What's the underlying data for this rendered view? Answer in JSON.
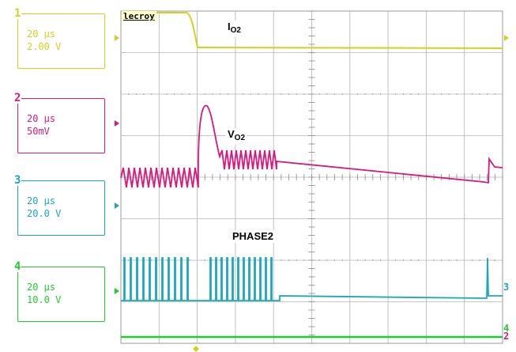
{
  "brand": "lecroy",
  "channels": [
    {
      "number": "1",
      "time_div": "20 µs",
      "volt_div": "2.00 V",
      "color": "#d2d21e"
    },
    {
      "number": "2",
      "time_div": "20 µs",
      "volt_div": "50mV",
      "color": "#d6197c"
    },
    {
      "number": "3",
      "time_div": "20 µs",
      "volt_div": "20.0 V",
      "color": "#1ba7be"
    },
    {
      "number": "4",
      "time_div": "20 µs",
      "volt_div": "10.0 V",
      "color": "#1ecd2c"
    }
  ],
  "trace_labels": {
    "io2_main": "I",
    "io2_sub": "O2",
    "vo2_main": "V",
    "vo2_sub": "O2",
    "phase2": "PHASE2"
  },
  "right_markers": {
    "ch3": "3",
    "ch4": "4",
    "ch2": "2"
  }
}
